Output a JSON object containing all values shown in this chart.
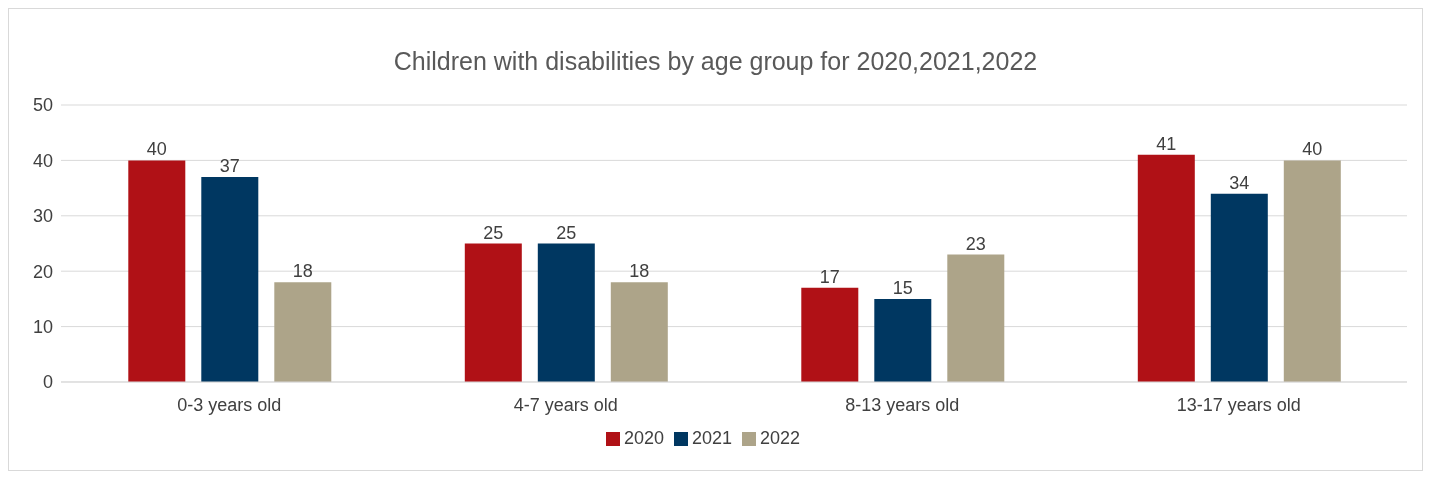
{
  "chart_data": {
    "type": "bar",
    "title": "Children with disabilities by age group for 2020,2021,2022",
    "categories": [
      "0-3 years old",
      "4-7 years old",
      "8-13 years old",
      "13-17 years old"
    ],
    "series": [
      {
        "name": "2020",
        "color": "#b01116",
        "values": [
          40,
          25,
          17,
          41
        ]
      },
      {
        "name": "2021",
        "color": "#003761",
        "values": [
          37,
          25,
          15,
          34
        ]
      },
      {
        "name": "2022",
        "color": "#ada489",
        "values": [
          18,
          18,
          23,
          40
        ]
      }
    ],
    "ylim": [
      0,
      50
    ],
    "yticks": [
      0,
      10,
      20,
      30,
      40,
      50
    ],
    "grid": "y",
    "legend": "bottom",
    "data_labels": true
  }
}
